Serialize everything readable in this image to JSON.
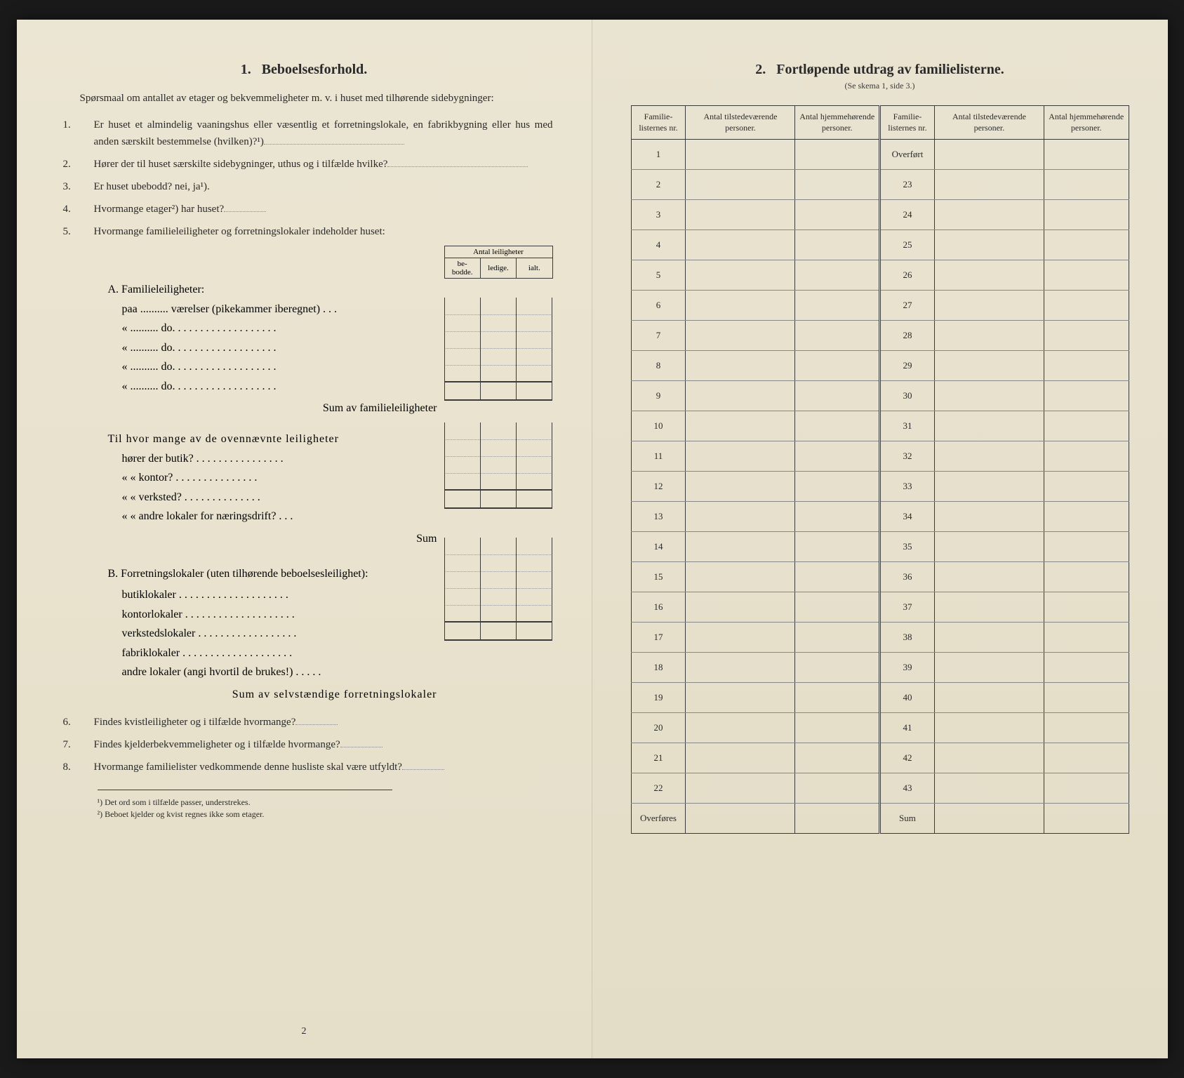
{
  "leftPage": {
    "sectionNum": "1.",
    "sectionTitle": "Beboelsesforhold.",
    "intro": "Spørsmaal om antallet av etager og bekvemmeligheter m. v. i huset med tilhørende sidebygninger:",
    "q1": "Er huset et almindelig vaaningshus eller væsentlig et forretningslokale, en fabrikbygning eller hus med anden særskilt bestemmelse (hvilken)?¹)",
    "q2": "Hører der til huset særskilte sidebygninger, uthus og i tilfælde hvilke?",
    "q3": "Er huset ubebodd?  nei,  ja¹).",
    "q4": "Hvormange etager²) har huset?",
    "q5": "Hvormange familieleiligheter og forretningslokaler indeholder huset:",
    "tableHeader": {
      "main": "Antal leiligheter",
      "col1": "be-bodde.",
      "col2": "ledige.",
      "col3": "ialt."
    },
    "sectionA": {
      "title": "A. Familieleiligheter:",
      "line1": "paa .......... værelser (pikekammer iberegnet) . . .",
      "line2": "« .......... do. . . . . . . . . . . . . . . . . . .",
      "line3": "« .......... do. . . . . . . . . . . . . . . . . . .",
      "line4": "« .......... do. . . . . . . . . . . . . . . . . . .",
      "line5": "« .......... do. . . . . . . . . . . . . . . . . . .",
      "sum": "Sum av familieleiligheter"
    },
    "sectionMid": {
      "intro": "Til hvor mange av de ovennævnte leiligheter",
      "line1": "hører der butik? . . . . . . . . . . . . . . . .",
      "line2": "«     «   kontor? . . . . . . . . . . . . . . .",
      "line3": "«     «   verksted? . . . . . . . . . . . . . .",
      "line4": "«     «   andre lokaler for næringsdrift? . . .",
      "sum": "Sum"
    },
    "sectionB": {
      "title": "B. Forretningslokaler (uten tilhørende beboelsesleilighet):",
      "line1": "butiklokaler . . . . . . . . . . . . . . . . . . . .",
      "line2": "kontorlokaler . . . . . . . . . . . . . . . . . . . .",
      "line3": "verkstedslokaler . . . . . . . . . . . . . . . . . .",
      "line4": "fabriklokaler . . . . . . . . . . . . . . . . . . . .",
      "line5": "andre lokaler (angi hvortil de brukes!) . . . . .",
      "sum": "Sum av selvstændige forretningslokaler"
    },
    "q6": "Findes kvistleiligheter og i tilfælde hvormange?",
    "q7": "Findes kjelderbekvemmeligheter og i tilfælde hvormange?",
    "q8": "Hvormange familielister vedkommende denne husliste skal være utfyldt?",
    "footnote1": "¹) Det ord som i tilfælde passer, understrekes.",
    "footnote2": "²) Beboet kjelder og kvist regnes ikke som etager.",
    "pageNum": "2"
  },
  "rightPage": {
    "sectionNum": "2.",
    "sectionTitle": "Fortløpende utdrag av familielisterne.",
    "subtitle": "(Se skema 1, side 3.)",
    "headers": {
      "col1": "Familie-listernes nr.",
      "col2": "Antal tilstedeværende personer.",
      "col3": "Antal hjemmehørende personer.",
      "col4": "Familie-listernes nr.",
      "col5": "Antal tilstedeværende personer.",
      "col6": "Antal hjemmehørende personer."
    },
    "leftNums": [
      "1",
      "2",
      "3",
      "4",
      "5",
      "6",
      "7",
      "8",
      "9",
      "10",
      "11",
      "12",
      "13",
      "14",
      "15",
      "16",
      "17",
      "18",
      "19",
      "20",
      "21",
      "22"
    ],
    "rightLabelTop": "Overført",
    "rightNums": [
      "23",
      "24",
      "25",
      "26",
      "27",
      "28",
      "29",
      "30",
      "31",
      "32",
      "33",
      "34",
      "35",
      "36",
      "37",
      "38",
      "39",
      "40",
      "41",
      "42",
      "43"
    ],
    "leftBottom": "Overføres",
    "rightBottom": "Sum"
  }
}
